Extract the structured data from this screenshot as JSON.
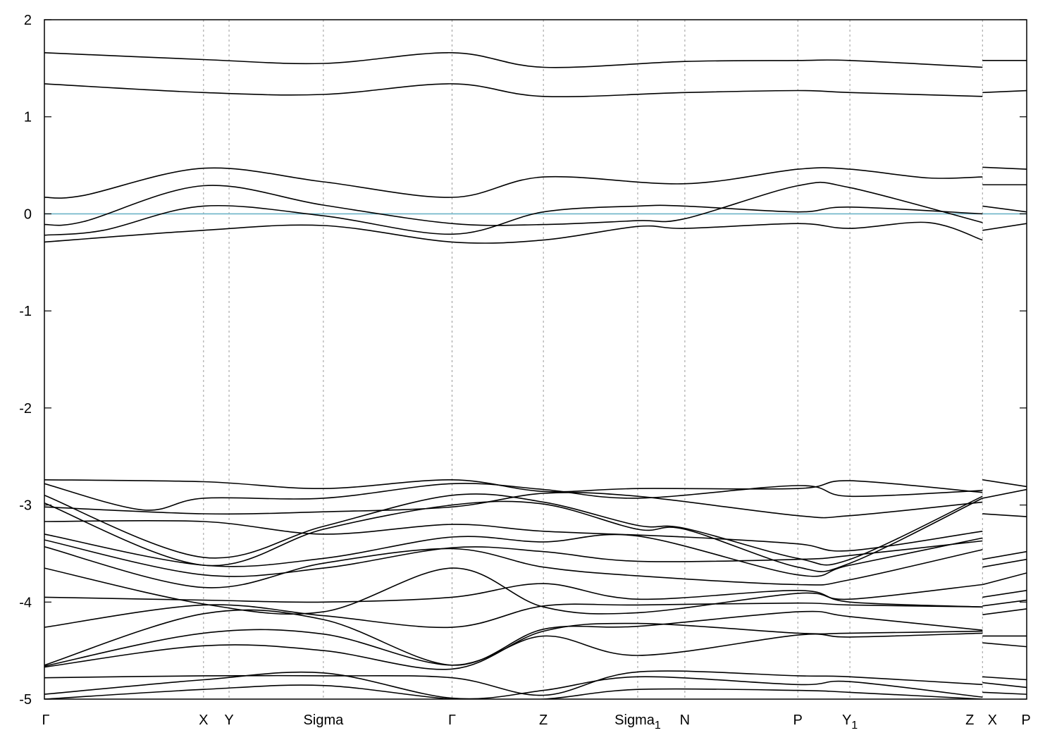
{
  "chart_data": {
    "type": "line",
    "title": "",
    "xlabel": "",
    "ylabel": "",
    "ylim": [
      -5,
      2
    ],
    "yticks": [
      2,
      1,
      0,
      -1,
      -2,
      -3,
      -4,
      -5
    ],
    "grid": "vertical dashed lines at high-symmetry points",
    "fermi_level": {
      "value": 0,
      "color": "#6cb4c8"
    },
    "line_color": "#000000",
    "kpoints": [
      {
        "label": "Γ",
        "sub": "",
        "x": 0.0
      },
      {
        "label": "X",
        "sub": "",
        "x": 0.162
      },
      {
        "label": "Y",
        "sub": "",
        "x": 0.188
      },
      {
        "label": "Sigma",
        "sub": "",
        "x": 0.284
      },
      {
        "label": "Γ",
        "sub": "",
        "x": 0.415
      },
      {
        "label": "Z",
        "sub": "",
        "x": 0.508
      },
      {
        "label": "Sigma",
        "sub": "1",
        "x": 0.604
      },
      {
        "label": "N",
        "sub": "",
        "x": 0.652
      },
      {
        "label": "P",
        "sub": "",
        "x": 0.767
      },
      {
        "label": "Y",
        "sub": "1",
        "x": 0.82
      },
      {
        "label": "Z",
        "sub": "",
        "x": 0.955
      },
      {
        "label": "X",
        "sub": "",
        "x": 0.955
      },
      {
        "label": "P",
        "sub": "",
        "x": 1.0
      }
    ],
    "dividers": [
      0.162,
      0.188,
      0.284,
      0.415,
      0.508,
      0.604,
      0.652,
      0.767,
      0.82,
      0.955
    ],
    "series": [
      {
        "values": [
          [
            0,
            1.66
          ],
          [
            0.162,
            1.59
          ],
          [
            0.284,
            1.55
          ],
          [
            0.415,
            1.66
          ],
          [
            0.508,
            1.51
          ],
          [
            0.652,
            1.57
          ],
          [
            0.767,
            1.58
          ],
          [
            0.82,
            1.58
          ],
          [
            0.955,
            1.51
          ]
        ]
      },
      {
        "values": [
          [
            0.955,
            1.58
          ],
          [
            1.0,
            1.58
          ]
        ]
      },
      {
        "values": [
          [
            0,
            1.34
          ],
          [
            0.162,
            1.25
          ],
          [
            0.284,
            1.23
          ],
          [
            0.415,
            1.34
          ],
          [
            0.508,
            1.21
          ],
          [
            0.652,
            1.25
          ],
          [
            0.767,
            1.27
          ],
          [
            0.82,
            1.25
          ],
          [
            0.955,
            1.21
          ]
        ]
      },
      {
        "values": [
          [
            0.955,
            1.25
          ],
          [
            1.0,
            1.27
          ]
        ]
      },
      {
        "values": [
          [
            0,
            0.17
          ],
          [
            0.04,
            0.19
          ],
          [
            0.162,
            0.47
          ],
          [
            0.284,
            0.33
          ],
          [
            0.415,
            0.17
          ],
          [
            0.508,
            0.38
          ],
          [
            0.652,
            0.31
          ],
          [
            0.767,
            0.46
          ],
          [
            0.82,
            0.46
          ],
          [
            0.9,
            0.37
          ],
          [
            0.955,
            0.38
          ]
        ]
      },
      {
        "values": [
          [
            0.955,
            0.48
          ],
          [
            1.0,
            0.46
          ]
        ]
      },
      {
        "values": [
          [
            0,
            -0.11
          ],
          [
            0.04,
            -0.08
          ],
          [
            0.162,
            0.29
          ],
          [
            0.284,
            0.09
          ],
          [
            0.415,
            -0.1
          ],
          [
            0.508,
            -0.11
          ],
          [
            0.604,
            -0.07
          ],
          [
            0.652,
            -0.05
          ],
          [
            0.767,
            0.29
          ],
          [
            0.82,
            0.27
          ],
          [
            0.955,
            -0.09
          ]
        ]
      },
      {
        "values": [
          [
            0.955,
            0.3
          ],
          [
            1.0,
            0.3
          ]
        ]
      },
      {
        "values": [
          [
            0,
            -0.22
          ],
          [
            0.06,
            -0.17
          ],
          [
            0.162,
            0.08
          ],
          [
            0.284,
            -0.02
          ],
          [
            0.415,
            -0.21
          ],
          [
            0.508,
            0.02
          ],
          [
            0.604,
            0.08
          ],
          [
            0.652,
            0.08
          ],
          [
            0.767,
            0.02
          ],
          [
            0.82,
            0.07
          ],
          [
            0.955,
            0.0
          ]
        ]
      },
      {
        "values": [
          [
            0.955,
            0.08
          ],
          [
            1.0,
            0.02
          ]
        ]
      },
      {
        "values": [
          [
            0,
            -0.29
          ],
          [
            0.162,
            -0.17
          ],
          [
            0.284,
            -0.12
          ],
          [
            0.415,
            -0.29
          ],
          [
            0.508,
            -0.27
          ],
          [
            0.604,
            -0.13
          ],
          [
            0.652,
            -0.15
          ],
          [
            0.767,
            -0.1
          ],
          [
            0.82,
            -0.15
          ],
          [
            0.9,
            -0.09
          ],
          [
            0.955,
            -0.27
          ]
        ]
      },
      {
        "values": [
          [
            0.955,
            -0.17
          ],
          [
            1.0,
            -0.1
          ]
        ]
      },
      {
        "values": [
          [
            0,
            -2.74
          ],
          [
            0.162,
            -2.76
          ],
          [
            0.284,
            -2.83
          ],
          [
            0.415,
            -2.74
          ],
          [
            0.508,
            -2.86
          ],
          [
            0.604,
            -2.83
          ],
          [
            0.767,
            -2.83
          ],
          [
            0.82,
            -2.75
          ],
          [
            0.955,
            -2.87
          ]
        ]
      },
      {
        "values": [
          [
            0,
            -2.78
          ],
          [
            0.1,
            -3.05
          ],
          [
            0.162,
            -2.93
          ],
          [
            0.284,
            -2.93
          ],
          [
            0.415,
            -2.78
          ],
          [
            0.508,
            -2.84
          ],
          [
            0.604,
            -2.93
          ],
          [
            0.767,
            -2.8
          ],
          [
            0.82,
            -2.91
          ],
          [
            0.955,
            -2.85
          ]
        ]
      },
      {
        "values": [
          [
            0,
            -2.9
          ],
          [
            0.162,
            -3.54
          ],
          [
            0.284,
            -3.22
          ],
          [
            0.415,
            -2.9
          ],
          [
            0.508,
            -2.97
          ],
          [
            0.604,
            -3.21
          ],
          [
            0.652,
            -3.24
          ],
          [
            0.767,
            -3.55
          ],
          [
            0.82,
            -3.56
          ],
          [
            0.955,
            -2.91
          ]
        ]
      },
      {
        "values": [
          [
            0,
            -2.98
          ],
          [
            0.162,
            -3.62
          ],
          [
            0.284,
            -3.25
          ],
          [
            0.415,
            -3.0
          ],
          [
            0.508,
            -2.99
          ],
          [
            0.604,
            -3.25
          ],
          [
            0.652,
            -3.25
          ],
          [
            0.767,
            -3.64
          ],
          [
            0.82,
            -3.6
          ],
          [
            0.955,
            -2.93
          ]
        ]
      },
      {
        "values": [
          [
            0,
            -3.02
          ],
          [
            0.162,
            -3.09
          ],
          [
            0.284,
            -3.07
          ],
          [
            0.415,
            -3.02
          ],
          [
            0.508,
            -2.88
          ],
          [
            0.604,
            -2.91
          ],
          [
            0.767,
            -3.11
          ],
          [
            0.82,
            -3.11
          ],
          [
            0.955,
            -2.97
          ]
        ]
      },
      {
        "values": [
          [
            0,
            -3.17
          ],
          [
            0.162,
            -3.17
          ],
          [
            0.284,
            -3.3
          ],
          [
            0.415,
            -3.2
          ],
          [
            0.508,
            -3.27
          ],
          [
            0.652,
            -3.33
          ],
          [
            0.767,
            -3.4
          ],
          [
            0.82,
            -3.47
          ],
          [
            0.955,
            -3.27
          ]
        ]
      },
      {
        "values": [
          [
            0,
            -3.3
          ],
          [
            0.162,
            -3.62
          ],
          [
            0.284,
            -3.55
          ],
          [
            0.415,
            -3.33
          ],
          [
            0.508,
            -3.38
          ],
          [
            0.604,
            -3.32
          ],
          [
            0.767,
            -3.72
          ],
          [
            0.82,
            -3.62
          ],
          [
            0.955,
            -3.34
          ]
        ]
      },
      {
        "values": [
          [
            0,
            -3.36
          ],
          [
            0.162,
            -3.72
          ],
          [
            0.284,
            -3.65
          ],
          [
            0.415,
            -3.44
          ],
          [
            0.508,
            -3.48
          ],
          [
            0.604,
            -3.58
          ],
          [
            0.767,
            -3.56
          ],
          [
            0.82,
            -3.52
          ],
          [
            0.955,
            -3.37
          ]
        ]
      },
      {
        "values": [
          [
            0,
            -3.43
          ],
          [
            0.162,
            -3.85
          ],
          [
            0.284,
            -3.6
          ],
          [
            0.415,
            -3.45
          ],
          [
            0.508,
            -3.64
          ],
          [
            0.604,
            -3.73
          ],
          [
            0.767,
            -3.82
          ],
          [
            0.82,
            -3.77
          ],
          [
            0.955,
            -3.46
          ]
        ]
      },
      {
        "values": [
          [
            0,
            -3.65
          ],
          [
            0.162,
            -4.02
          ],
          [
            0.284,
            -4.1
          ],
          [
            0.415,
            -3.65
          ],
          [
            0.508,
            -4.05
          ],
          [
            0.604,
            -4.11
          ],
          [
            0.767,
            -3.91
          ],
          [
            0.82,
            -3.97
          ],
          [
            0.955,
            -3.82
          ]
        ]
      },
      {
        "values": [
          [
            0,
            -3.95
          ],
          [
            0.162,
            -3.98
          ],
          [
            0.284,
            -4.0
          ],
          [
            0.415,
            -3.95
          ],
          [
            0.508,
            -3.81
          ],
          [
            0.604,
            -3.97
          ],
          [
            0.767,
            -3.88
          ],
          [
            0.82,
            -4.0
          ],
          [
            0.955,
            -4.05
          ]
        ]
      },
      {
        "values": [
          [
            0,
            -4.26
          ],
          [
            0.162,
            -4.03
          ],
          [
            0.284,
            -4.14
          ],
          [
            0.415,
            -4.26
          ],
          [
            0.508,
            -4.04
          ],
          [
            0.604,
            -4.03
          ],
          [
            0.767,
            -4.01
          ],
          [
            0.82,
            -4.03
          ],
          [
            0.955,
            -4.05
          ]
        ]
      },
      {
        "values": [
          [
            0,
            -4.65
          ],
          [
            0.162,
            -4.12
          ],
          [
            0.284,
            -4.18
          ],
          [
            0.415,
            -4.65
          ],
          [
            0.508,
            -4.28
          ],
          [
            0.604,
            -4.25
          ],
          [
            0.767,
            -4.1
          ],
          [
            0.82,
            -4.15
          ],
          [
            0.955,
            -4.29
          ]
        ]
      },
      {
        "values": [
          [
            0,
            -4.66
          ],
          [
            0.162,
            -4.32
          ],
          [
            0.284,
            -4.33
          ],
          [
            0.415,
            -4.65
          ],
          [
            0.508,
            -4.35
          ],
          [
            0.604,
            -4.55
          ],
          [
            0.767,
            -4.34
          ],
          [
            0.82,
            -4.36
          ],
          [
            0.955,
            -4.32
          ]
        ]
      },
      {
        "values": [
          [
            0,
            -4.67
          ],
          [
            0.162,
            -4.45
          ],
          [
            0.284,
            -4.5
          ],
          [
            0.415,
            -4.69
          ],
          [
            0.508,
            -4.3
          ],
          [
            0.604,
            -4.22
          ],
          [
            0.767,
            -4.32
          ],
          [
            0.82,
            -4.32
          ],
          [
            0.955,
            -4.3
          ]
        ]
      },
      {
        "values": [
          [
            0,
            -4.78
          ],
          [
            0.162,
            -4.76
          ],
          [
            0.284,
            -4.76
          ],
          [
            0.415,
            -4.78
          ],
          [
            0.508,
            -4.96
          ],
          [
            0.604,
            -4.72
          ],
          [
            0.767,
            -4.76
          ],
          [
            0.82,
            -4.77
          ],
          [
            0.955,
            -4.85
          ]
        ]
      },
      {
        "values": [
          [
            0,
            -4.95
          ],
          [
            0.162,
            -4.8
          ],
          [
            0.284,
            -4.73
          ],
          [
            0.415,
            -4.99
          ],
          [
            0.508,
            -4.91
          ],
          [
            0.604,
            -4.77
          ],
          [
            0.767,
            -4.85
          ],
          [
            0.82,
            -4.82
          ],
          [
            0.955,
            -4.98
          ]
        ]
      },
      {
        "values": [
          [
            0,
            -5.0
          ],
          [
            0.162,
            -4.9
          ],
          [
            0.284,
            -4.86
          ],
          [
            0.415,
            -5.0
          ],
          [
            0.508,
            -5.0
          ],
          [
            0.604,
            -4.9
          ],
          [
            0.767,
            -4.91
          ],
          [
            0.82,
            -4.93
          ],
          [
            0.955,
            -5.0
          ]
        ]
      },
      {
        "values": [
          [
            0.955,
            -2.74
          ],
          [
            1.0,
            -2.81
          ]
        ]
      },
      {
        "values": [
          [
            0.955,
            -2.93
          ],
          [
            1.0,
            -2.84
          ]
        ]
      },
      {
        "values": [
          [
            0.955,
            -3.09
          ],
          [
            1.0,
            -3.12
          ]
        ]
      },
      {
        "values": [
          [
            0.955,
            -3.56
          ],
          [
            1.0,
            -3.48
          ]
        ]
      },
      {
        "values": [
          [
            0.955,
            -3.64
          ],
          [
            1.0,
            -3.56
          ]
        ]
      },
      {
        "values": [
          [
            0.955,
            -3.82
          ],
          [
            1.0,
            -3.7
          ]
        ]
      },
      {
        "values": [
          [
            0.955,
            -3.95
          ],
          [
            1.0,
            -3.88
          ]
        ]
      },
      {
        "values": [
          [
            0.955,
            -4.04
          ],
          [
            1.0,
            -3.98
          ]
        ]
      },
      {
        "values": [
          [
            0.955,
            -4.13
          ],
          [
            1.0,
            -4.07
          ]
        ]
      },
      {
        "values": [
          [
            0.955,
            -4.35
          ],
          [
            1.0,
            -4.35
          ]
        ]
      },
      {
        "values": [
          [
            0.955,
            -4.42
          ],
          [
            1.0,
            -4.46
          ]
        ]
      },
      {
        "values": [
          [
            0.955,
            -4.77
          ],
          [
            1.0,
            -4.8
          ]
        ]
      },
      {
        "values": [
          [
            0.955,
            -4.83
          ],
          [
            1.0,
            -4.88
          ]
        ]
      },
      {
        "values": [
          [
            0.955,
            -4.93
          ],
          [
            1.0,
            -4.95
          ]
        ]
      }
    ]
  }
}
